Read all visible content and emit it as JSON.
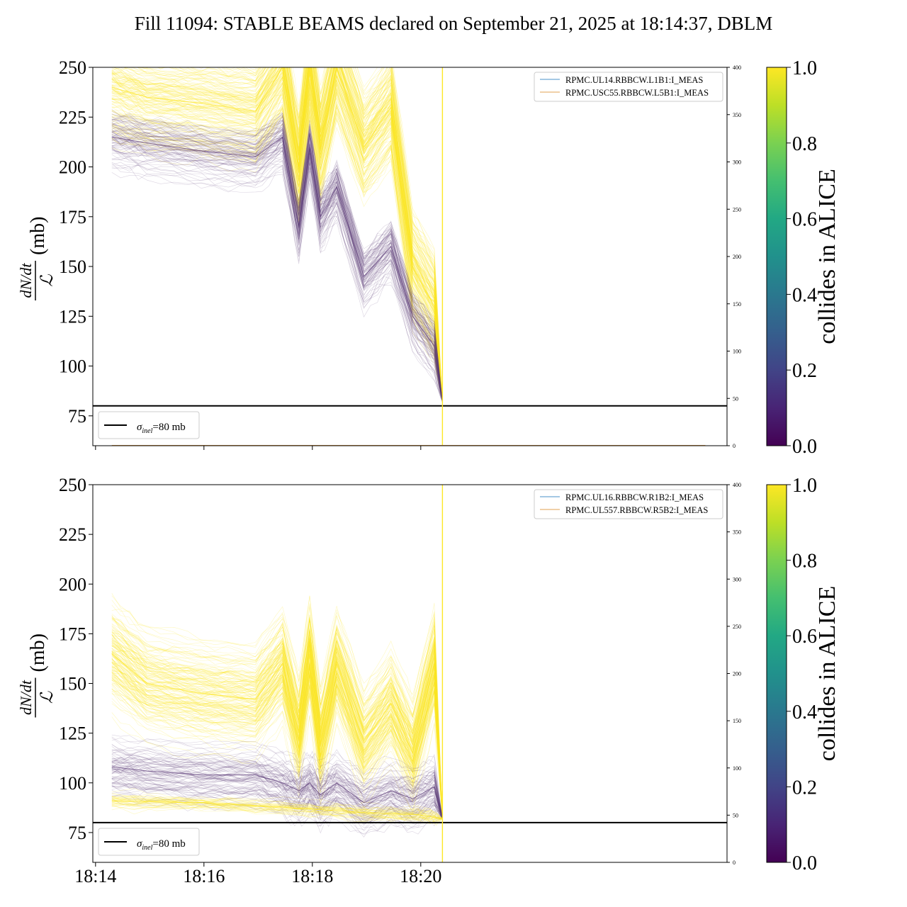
{
  "figure": {
    "title": "Fill 11094: STABLE BEAMS declared on September 21, 2025 at 18:14:37, DBLM"
  },
  "colors": {
    "yellow": "#fde725",
    "purple": "#5b3a78",
    "blue_line": "#4a90c8",
    "orange_line": "#e0a050",
    "threshold": "#000000"
  },
  "chart_data": [
    {
      "type": "line",
      "panel": "top",
      "ylabel_parts": {
        "frac_num": "dN/dt",
        "frac_den": "ℒ",
        "unit": "(mb)"
      },
      "ylim": [
        60,
        250
      ],
      "yticks": [
        "75",
        "100",
        "125",
        "150",
        "175",
        "200",
        "225",
        "250"
      ],
      "ytick_values": [
        75,
        100,
        125,
        150,
        175,
        200,
        225,
        250
      ],
      "right_ylim": [
        0,
        400
      ],
      "right_yticks": [
        "0",
        "50",
        "100",
        "150",
        "200",
        "250",
        "300",
        "350",
        "400"
      ],
      "right_ytick_values": [
        0,
        50,
        100,
        150,
        200,
        250,
        300,
        350,
        400
      ],
      "xlim_minutes": [
        0,
        11.7
      ],
      "xtick_values": [
        0,
        2,
        4,
        6
      ],
      "xtick_labels": [
        "",
        "",
        "",
        ""
      ],
      "threshold": {
        "value": 80,
        "label_symbol": "σ",
        "label_sub": "inel",
        "label_rest": "=80 mb"
      },
      "vline_minutes": 6.45,
      "legend": [
        "RPMC.UL14.RBBCW.L1B1:I_MEAS",
        "RPMC.USC55.RBBCW.L5B1:I_MEAS"
      ],
      "series": [
        {
          "name": "yellow-bundle-mean",
          "color": "#fde725",
          "x_minutes": [
            0.35,
            1,
            2,
            3,
            3.5,
            3.8,
            4.0,
            4.2,
            4.5,
            5.0,
            5.5,
            5.9,
            6.3,
            6.45
          ],
          "values": [
            240,
            235,
            232,
            228,
            250,
            200,
            250,
            210,
            250,
            210,
            230,
            150,
            130,
            82
          ]
        },
        {
          "name": "purple-bundle-mean",
          "color": "#5b3a78",
          "x_minutes": [
            0.35,
            1,
            2,
            3,
            3.5,
            3.8,
            4.0,
            4.2,
            4.5,
            5.0,
            5.5,
            5.9,
            6.3,
            6.45
          ],
          "values": [
            215,
            212,
            208,
            205,
            215,
            170,
            210,
            175,
            190,
            145,
            160,
            125,
            110,
            82
          ]
        }
      ],
      "colorbar": {
        "label": "collides in ALICE",
        "ticks": [
          "0.0",
          "0.2",
          "0.4",
          "0.6",
          "0.8",
          "1.0"
        ],
        "tick_values": [
          0,
          0.2,
          0.4,
          0.6,
          0.8,
          1.0
        ]
      }
    },
    {
      "type": "line",
      "panel": "bottom",
      "ylabel_parts": {
        "frac_num": "dN/dt",
        "frac_den": "ℒ",
        "unit": "(mb)"
      },
      "ylim": [
        60,
        250
      ],
      "yticks": [
        "75",
        "100",
        "125",
        "150",
        "175",
        "200",
        "225",
        "250"
      ],
      "ytick_values": [
        75,
        100,
        125,
        150,
        175,
        200,
        225,
        250
      ],
      "right_ylim": [
        0,
        400
      ],
      "right_yticks": [
        "0",
        "50",
        "100",
        "150",
        "200",
        "250",
        "300",
        "350",
        "400"
      ],
      "right_ytick_values": [
        0,
        50,
        100,
        150,
        200,
        250,
        300,
        350,
        400
      ],
      "xlim_minutes": [
        0,
        11.7
      ],
      "xtick_values": [
        0,
        2,
        4,
        6
      ],
      "xtick_labels": [
        "18:14",
        "18:16",
        "18:18",
        "18:20"
      ],
      "threshold": {
        "value": 80,
        "label_symbol": "σ",
        "label_sub": "inel",
        "label_rest": "=80 mb"
      },
      "vline_minutes": 6.45,
      "legend": [
        "RPMC.UL16.RBBCW.R1B2:I_MEAS",
        "RPMC.UL557.RBBCW.R5B2:I_MEAS"
      ],
      "series": [
        {
          "name": "yellow-bundle-mean",
          "color": "#fde725",
          "x_minutes": [
            0.35,
            1,
            2,
            3,
            3.5,
            3.8,
            4.0,
            4.2,
            4.5,
            5.0,
            5.5,
            5.9,
            6.3,
            6.45
          ],
          "values": [
            165,
            150,
            145,
            142,
            160,
            125,
            165,
            120,
            160,
            120,
            140,
            115,
            160,
            82
          ]
        },
        {
          "name": "purple-bundle-mean",
          "color": "#5b3a78",
          "x_minutes": [
            0.35,
            1,
            2,
            3,
            3.5,
            3.8,
            4.0,
            4.2,
            4.5,
            5.0,
            5.5,
            5.9,
            6.3,
            6.45
          ],
          "values": [
            108,
            106,
            104,
            104,
            100,
            96,
            100,
            94,
            100,
            90,
            96,
            92,
            98,
            82
          ]
        },
        {
          "name": "low-yellow-band",
          "color": "#fde725",
          "x_minutes": [
            0.35,
            2,
            4,
            5,
            6,
            6.45
          ],
          "values": [
            91,
            90,
            87,
            85,
            84,
            82
          ]
        }
      ],
      "colorbar": {
        "label": "collides in ALICE",
        "ticks": [
          "0.0",
          "0.2",
          "0.4",
          "0.6",
          "0.8",
          "1.0"
        ],
        "tick_values": [
          0,
          0.2,
          0.4,
          0.6,
          0.8,
          1.0
        ]
      }
    }
  ]
}
